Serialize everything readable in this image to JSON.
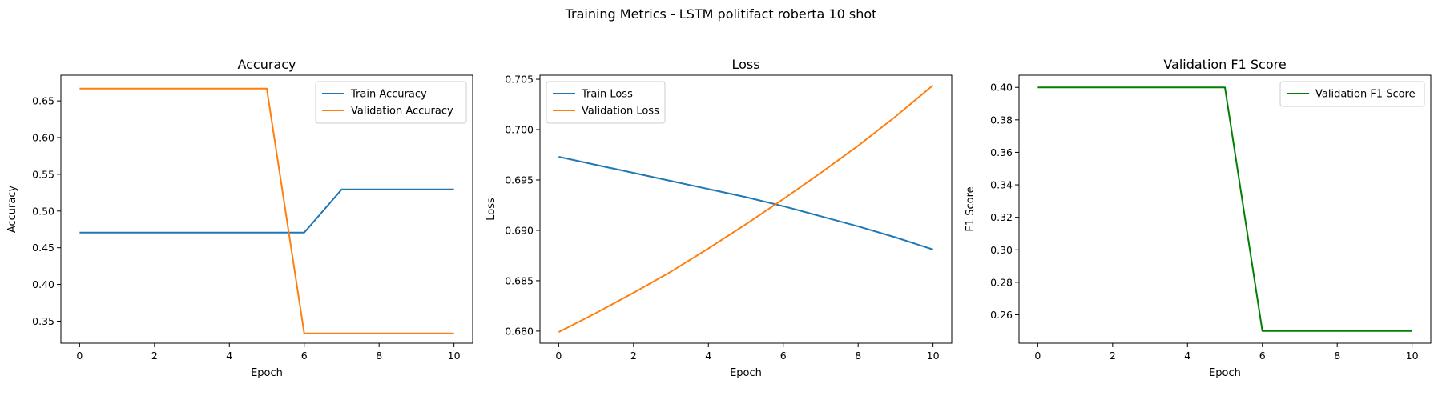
{
  "figure": {
    "suptitle": "Training Metrics - LSTM politifact roberta 10 shot"
  },
  "chart_data": [
    {
      "type": "line",
      "title": "Accuracy",
      "xlabel": "Epoch",
      "ylabel": "Accuracy",
      "xlim": [
        -0.5,
        10.5
      ],
      "ylim": [
        0.32,
        0.685
      ],
      "xticks": [
        0,
        2,
        4,
        6,
        8,
        10
      ],
      "yticks": [
        0.35,
        0.4,
        0.45,
        0.5,
        0.55,
        0.6,
        0.65
      ],
      "ytick_decimals": 2,
      "legend": "top-right",
      "grid": false,
      "x": [
        0,
        1,
        2,
        3,
        4,
        5,
        6,
        7,
        8,
        9,
        10
      ],
      "series": [
        {
          "name": "Train Accuracy",
          "color": "#1f77b4",
          "values": [
            0.4706,
            0.4706,
            0.4706,
            0.4706,
            0.4706,
            0.4706,
            0.4706,
            0.5294,
            0.5294,
            0.5294,
            0.5294
          ]
        },
        {
          "name": "Validation Accuracy",
          "color": "#ff7f0e",
          "values": [
            0.6667,
            0.6667,
            0.6667,
            0.6667,
            0.6667,
            0.6667,
            0.3333,
            0.3333,
            0.3333,
            0.3333,
            0.3333
          ]
        }
      ]
    },
    {
      "type": "line",
      "title": "Loss",
      "xlabel": "Epoch",
      "ylabel": "Loss",
      "xlim": [
        -0.5,
        10.5
      ],
      "ylim": [
        0.6788,
        0.7054
      ],
      "xticks": [
        0,
        2,
        4,
        6,
        8,
        10
      ],
      "yticks": [
        0.68,
        0.685,
        0.69,
        0.695,
        0.7,
        0.705
      ],
      "ytick_decimals": 3,
      "legend": "top-left",
      "grid": false,
      "x": [
        0,
        1,
        2,
        3,
        4,
        5,
        6,
        7,
        8,
        9,
        10
      ],
      "series": [
        {
          "name": "Train Loss",
          "color": "#1f77b4",
          "values": [
            0.6973,
            0.6965,
            0.6957,
            0.6949,
            0.6941,
            0.6933,
            0.6924,
            0.6914,
            0.6904,
            0.6893,
            0.6881
          ]
        },
        {
          "name": "Validation Loss",
          "color": "#ff7f0e",
          "values": [
            0.6799,
            0.6818,
            0.6838,
            0.6859,
            0.6882,
            0.6906,
            0.6931,
            0.6957,
            0.6984,
            0.7013,
            0.7044
          ]
        }
      ]
    },
    {
      "type": "line",
      "title": "Validation F1 Score",
      "xlabel": "Epoch",
      "ylabel": "F1 Score",
      "xlim": [
        -0.5,
        10.5
      ],
      "ylim": [
        0.2425,
        0.4075
      ],
      "xticks": [
        0,
        2,
        4,
        6,
        8,
        10
      ],
      "yticks": [
        0.26,
        0.28,
        0.3,
        0.32,
        0.34,
        0.36,
        0.38,
        0.4
      ],
      "ytick_decimals": 2,
      "legend": "top-right",
      "grid": false,
      "x": [
        0,
        1,
        2,
        3,
        4,
        5,
        6,
        7,
        8,
        9,
        10
      ],
      "series": [
        {
          "name": "Validation F1 Score",
          "color": "#008000",
          "values": [
            0.4,
            0.4,
            0.4,
            0.4,
            0.4,
            0.4,
            0.25,
            0.25,
            0.25,
            0.25,
            0.25
          ]
        }
      ]
    }
  ]
}
